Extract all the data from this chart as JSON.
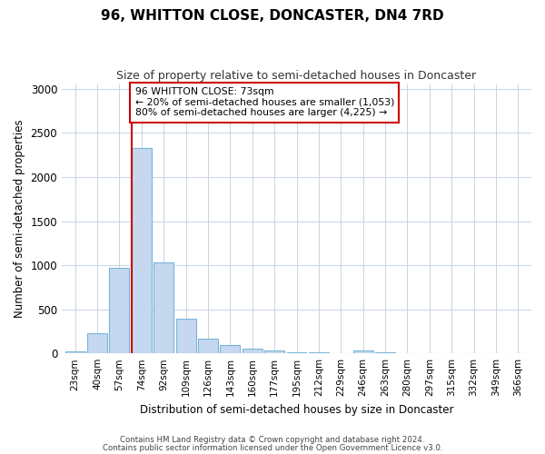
{
  "title": "96, WHITTON CLOSE, DONCASTER, DN4 7RD",
  "subtitle": "Size of property relative to semi-detached houses in Doncaster",
  "xlabel": "Distribution of semi-detached houses by size in Doncaster",
  "ylabel": "Number of semi-detached properties",
  "footer_line1": "Contains HM Land Registry data © Crown copyright and database right 2024.",
  "footer_line2": "Contains public sector information licensed under the Open Government Licence v3.0.",
  "bar_labels": [
    "23sqm",
    "40sqm",
    "57sqm",
    "74sqm",
    "92sqm",
    "109sqm",
    "126sqm",
    "143sqm",
    "160sqm",
    "177sqm",
    "195sqm",
    "212sqm",
    "229sqm",
    "246sqm",
    "263sqm",
    "280sqm",
    "297sqm",
    "315sqm",
    "332sqm",
    "349sqm",
    "366sqm"
  ],
  "bar_values": [
    20,
    230,
    970,
    2330,
    1030,
    390,
    170,
    90,
    55,
    30,
    15,
    10,
    5,
    30,
    10,
    3,
    3,
    3,
    3,
    3,
    3
  ],
  "bar_color": "#c5d8f0",
  "bar_edgecolor": "#7ab4d8",
  "ylim": [
    0,
    3050
  ],
  "yticks": [
    0,
    500,
    1000,
    1500,
    2000,
    2500,
    3000
  ],
  "property_line_idx": 3,
  "property_line_color": "#cc0000",
  "annotation_text": "96 WHITTON CLOSE: 73sqm\n← 20% of semi-detached houses are smaller (1,053)\n80% of semi-detached houses are larger (4,225) →",
  "annotation_box_color": "#ffffff",
  "annotation_box_edgecolor": "#cc0000",
  "background_color": "#ffffff",
  "grid_color": "#c8d4e4"
}
